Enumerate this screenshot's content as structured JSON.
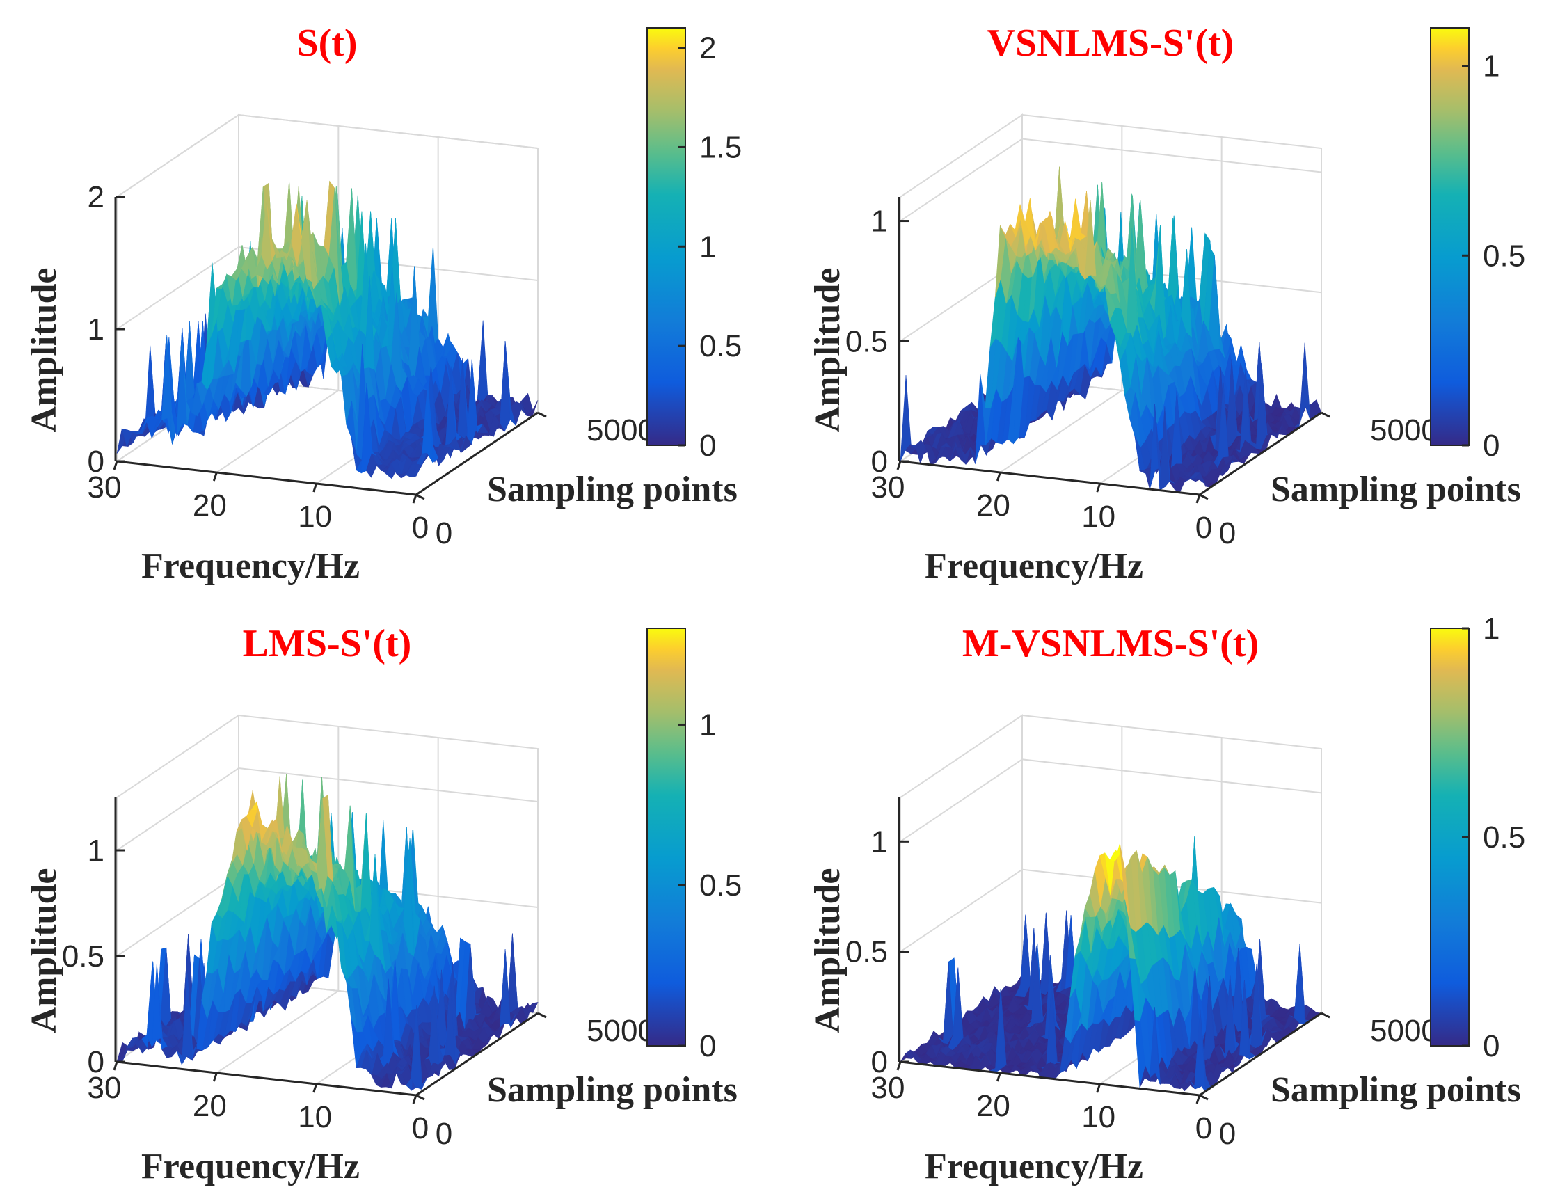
{
  "chart_data": [
    {
      "type": "surface",
      "title": "S(t)",
      "xlabel": "Frequency/Hz",
      "ylabel": "Sampling points",
      "zlabel": "Amplitude",
      "x_range": [
        0,
        30
      ],
      "y_range": [
        0,
        5000
      ],
      "x_ticks": [
        "30",
        "20",
        "10",
        "0"
      ],
      "y_ticks": [
        "0",
        "5000"
      ],
      "z_ticks": [
        {
          "v": 0,
          "label": "0"
        },
        {
          "v": 1,
          "label": "1"
        },
        {
          "v": 2,
          "label": "2"
        }
      ],
      "z_range": [
        0,
        2
      ],
      "colorbar": {
        "min": 0,
        "max": 2.1,
        "ticks": [
          {
            "v": 0,
            "label": "0"
          },
          {
            "v": 0.5,
            "label": "0.5"
          },
          {
            "v": 1,
            "label": "1"
          },
          {
            "v": 1.5,
            "label": "1.5"
          },
          {
            "v": 2,
            "label": "2"
          }
        ]
      },
      "profile_by_frequency": {
        "frequency_hz": [
          30,
          28,
          26,
          24,
          22,
          20,
          18,
          16,
          14,
          12,
          10,
          8,
          6,
          4,
          2,
          0
        ],
        "amplitude": [
          0.15,
          0.25,
          0.35,
          0.3,
          0.5,
          1.3,
          1.6,
          1.7,
          1.75,
          1.8,
          1.3,
          0.9,
          0.2,
          0.15,
          0.15,
          0.2
        ]
      }
    },
    {
      "type": "surface",
      "title": "VSNLMS-S'(t)",
      "xlabel": "Frequency/Hz",
      "ylabel": "Sampling points",
      "zlabel": "Amplitude",
      "x_range": [
        0,
        30
      ],
      "y_range": [
        0,
        5000
      ],
      "x_ticks": [
        "30",
        "20",
        "10",
        "0"
      ],
      "y_ticks": [
        "0",
        "5000"
      ],
      "z_ticks": [
        {
          "v": 0,
          "label": "0"
        },
        {
          "v": 0.5,
          "label": "0.5"
        },
        {
          "v": 1,
          "label": "1"
        }
      ],
      "z_range": [
        0,
        1.1
      ],
      "colorbar": {
        "min": 0,
        "max": 1.1,
        "ticks": [
          {
            "v": 0,
            "label": "0"
          },
          {
            "v": 0.5,
            "label": "0.5"
          },
          {
            "v": 1,
            "label": "1"
          }
        ]
      },
      "profile_by_frequency": {
        "frequency_hz": [
          30,
          28,
          26,
          24,
          22,
          20,
          18,
          16,
          14,
          12,
          10,
          8,
          6,
          4,
          2,
          0
        ],
        "amplitude": [
          0.02,
          0.04,
          0.05,
          0.04,
          0.08,
          0.95,
          1.05,
          1.05,
          1.0,
          0.95,
          0.85,
          0.6,
          0.05,
          0.03,
          0.03,
          0.03
        ]
      }
    },
    {
      "type": "surface",
      "title": "LMS-S'(t)",
      "xlabel": "Frequency/Hz",
      "ylabel": "Sampling points",
      "zlabel": "Amplitude",
      "x_range": [
        0,
        30
      ],
      "y_range": [
        0,
        5000
      ],
      "x_ticks": [
        "30",
        "20",
        "10",
        "0"
      ],
      "y_ticks": [
        "0",
        "5000"
      ],
      "z_ticks": [
        {
          "v": 0,
          "label": "0"
        },
        {
          "v": 0.5,
          "label": "0.5"
        },
        {
          "v": 1,
          "label": "1"
        }
      ],
      "z_range": [
        0,
        1.25
      ],
      "colorbar": {
        "min": 0,
        "max": 1.3,
        "ticks": [
          {
            "v": 0,
            "label": "0"
          },
          {
            "v": 0.5,
            "label": "0.5"
          },
          {
            "v": 1,
            "label": "1"
          }
        ]
      },
      "profile_by_frequency": {
        "frequency_hz": [
          30,
          28,
          26,
          24,
          22,
          20,
          18,
          16,
          14,
          12,
          10,
          8,
          6,
          4,
          2,
          0
        ],
        "amplitude": [
          0.03,
          0.08,
          0.12,
          0.06,
          0.1,
          0.85,
          1.15,
          1.2,
          1.15,
          1.05,
          0.95,
          0.7,
          0.15,
          0.05,
          0.05,
          0.04
        ]
      }
    },
    {
      "type": "surface",
      "title": "M-VSNLMS-S'(t)",
      "xlabel": "Frequency/Hz",
      "ylabel": "Sampling points",
      "zlabel": "Amplitude",
      "x_range": [
        0,
        30
      ],
      "y_range": [
        0,
        5000
      ],
      "x_ticks": [
        "30",
        "20",
        "10",
        "0"
      ],
      "y_ticks": [
        "0",
        "5000"
      ],
      "z_ticks": [
        {
          "v": 0,
          "label": "0"
        },
        {
          "v": 0.5,
          "label": "0.5"
        },
        {
          "v": 1,
          "label": "1"
        }
      ],
      "z_range": [
        0,
        1.2
      ],
      "colorbar": {
        "min": 0,
        "max": 1.0,
        "ticks": [
          {
            "v": 0,
            "label": "0"
          },
          {
            "v": 0.5,
            "label": "0.5"
          },
          {
            "v": 1,
            "label": "1"
          }
        ]
      },
      "profile_by_frequency": {
        "frequency_hz": [
          30,
          28,
          26,
          24,
          22,
          20,
          18,
          16,
          14,
          12,
          10,
          8,
          6,
          4,
          2,
          0
        ],
        "amplitude": [
          0.01,
          0.01,
          0.01,
          0.01,
          0.01,
          0.01,
          0.01,
          0.01,
          0.02,
          0.7,
          0.95,
          1.05,
          0.05,
          0.02,
          0.02,
          0.02
        ]
      }
    }
  ]
}
